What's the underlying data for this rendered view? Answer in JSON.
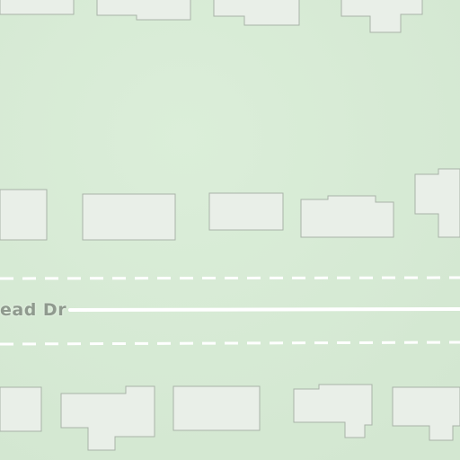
{
  "map": {
    "road_label": "ead Dr",
    "colors": {
      "land": "#d7ead5",
      "building_fill": "#e9efe8",
      "building_stroke": "#a9b3a8",
      "road": "#ffffff",
      "label": "#8f9a8e"
    }
  }
}
